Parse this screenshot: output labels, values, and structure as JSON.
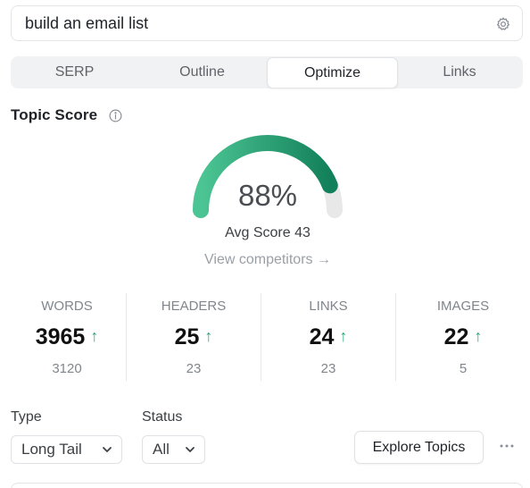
{
  "search": {
    "value": "build an email list"
  },
  "tabs": [
    {
      "label": "SERP",
      "active": false
    },
    {
      "label": "Outline",
      "active": false
    },
    {
      "label": "Optimize",
      "active": true
    },
    {
      "label": "Links",
      "active": false
    }
  ],
  "topic_score": {
    "title": "Topic Score",
    "score_text": "88%",
    "score_value": 88,
    "avg_text": "Avg Score 43",
    "view_competitors": "View competitors →",
    "gauge_colors": {
      "start": "#4cc594",
      "end": "#12805a",
      "track": "#e8e8e8"
    }
  },
  "stats": [
    {
      "label": "WORDS",
      "value": "3965",
      "arrow": "↑",
      "target": "3120"
    },
    {
      "label": "HEADERS",
      "value": "25",
      "arrow": "↑",
      "target": "23"
    },
    {
      "label": "LINKS",
      "value": "24",
      "arrow": "↑",
      "target": "23"
    },
    {
      "label": "IMAGES",
      "value": "22",
      "arrow": "↑",
      "target": "5"
    }
  ],
  "filters": {
    "type_label": "Type",
    "type_value": "Long Tail",
    "status_label": "Status",
    "status_value": "All"
  },
  "explore_button": "Explore Topics",
  "icons": {
    "search_settings": "gear-icon",
    "info": "info-icon",
    "arrow_up": "arrow-up-icon",
    "chevron": "chevron-down-icon",
    "more": "more-horizontal-icon"
  },
  "colors": {
    "accent_green": "#2aa876"
  }
}
